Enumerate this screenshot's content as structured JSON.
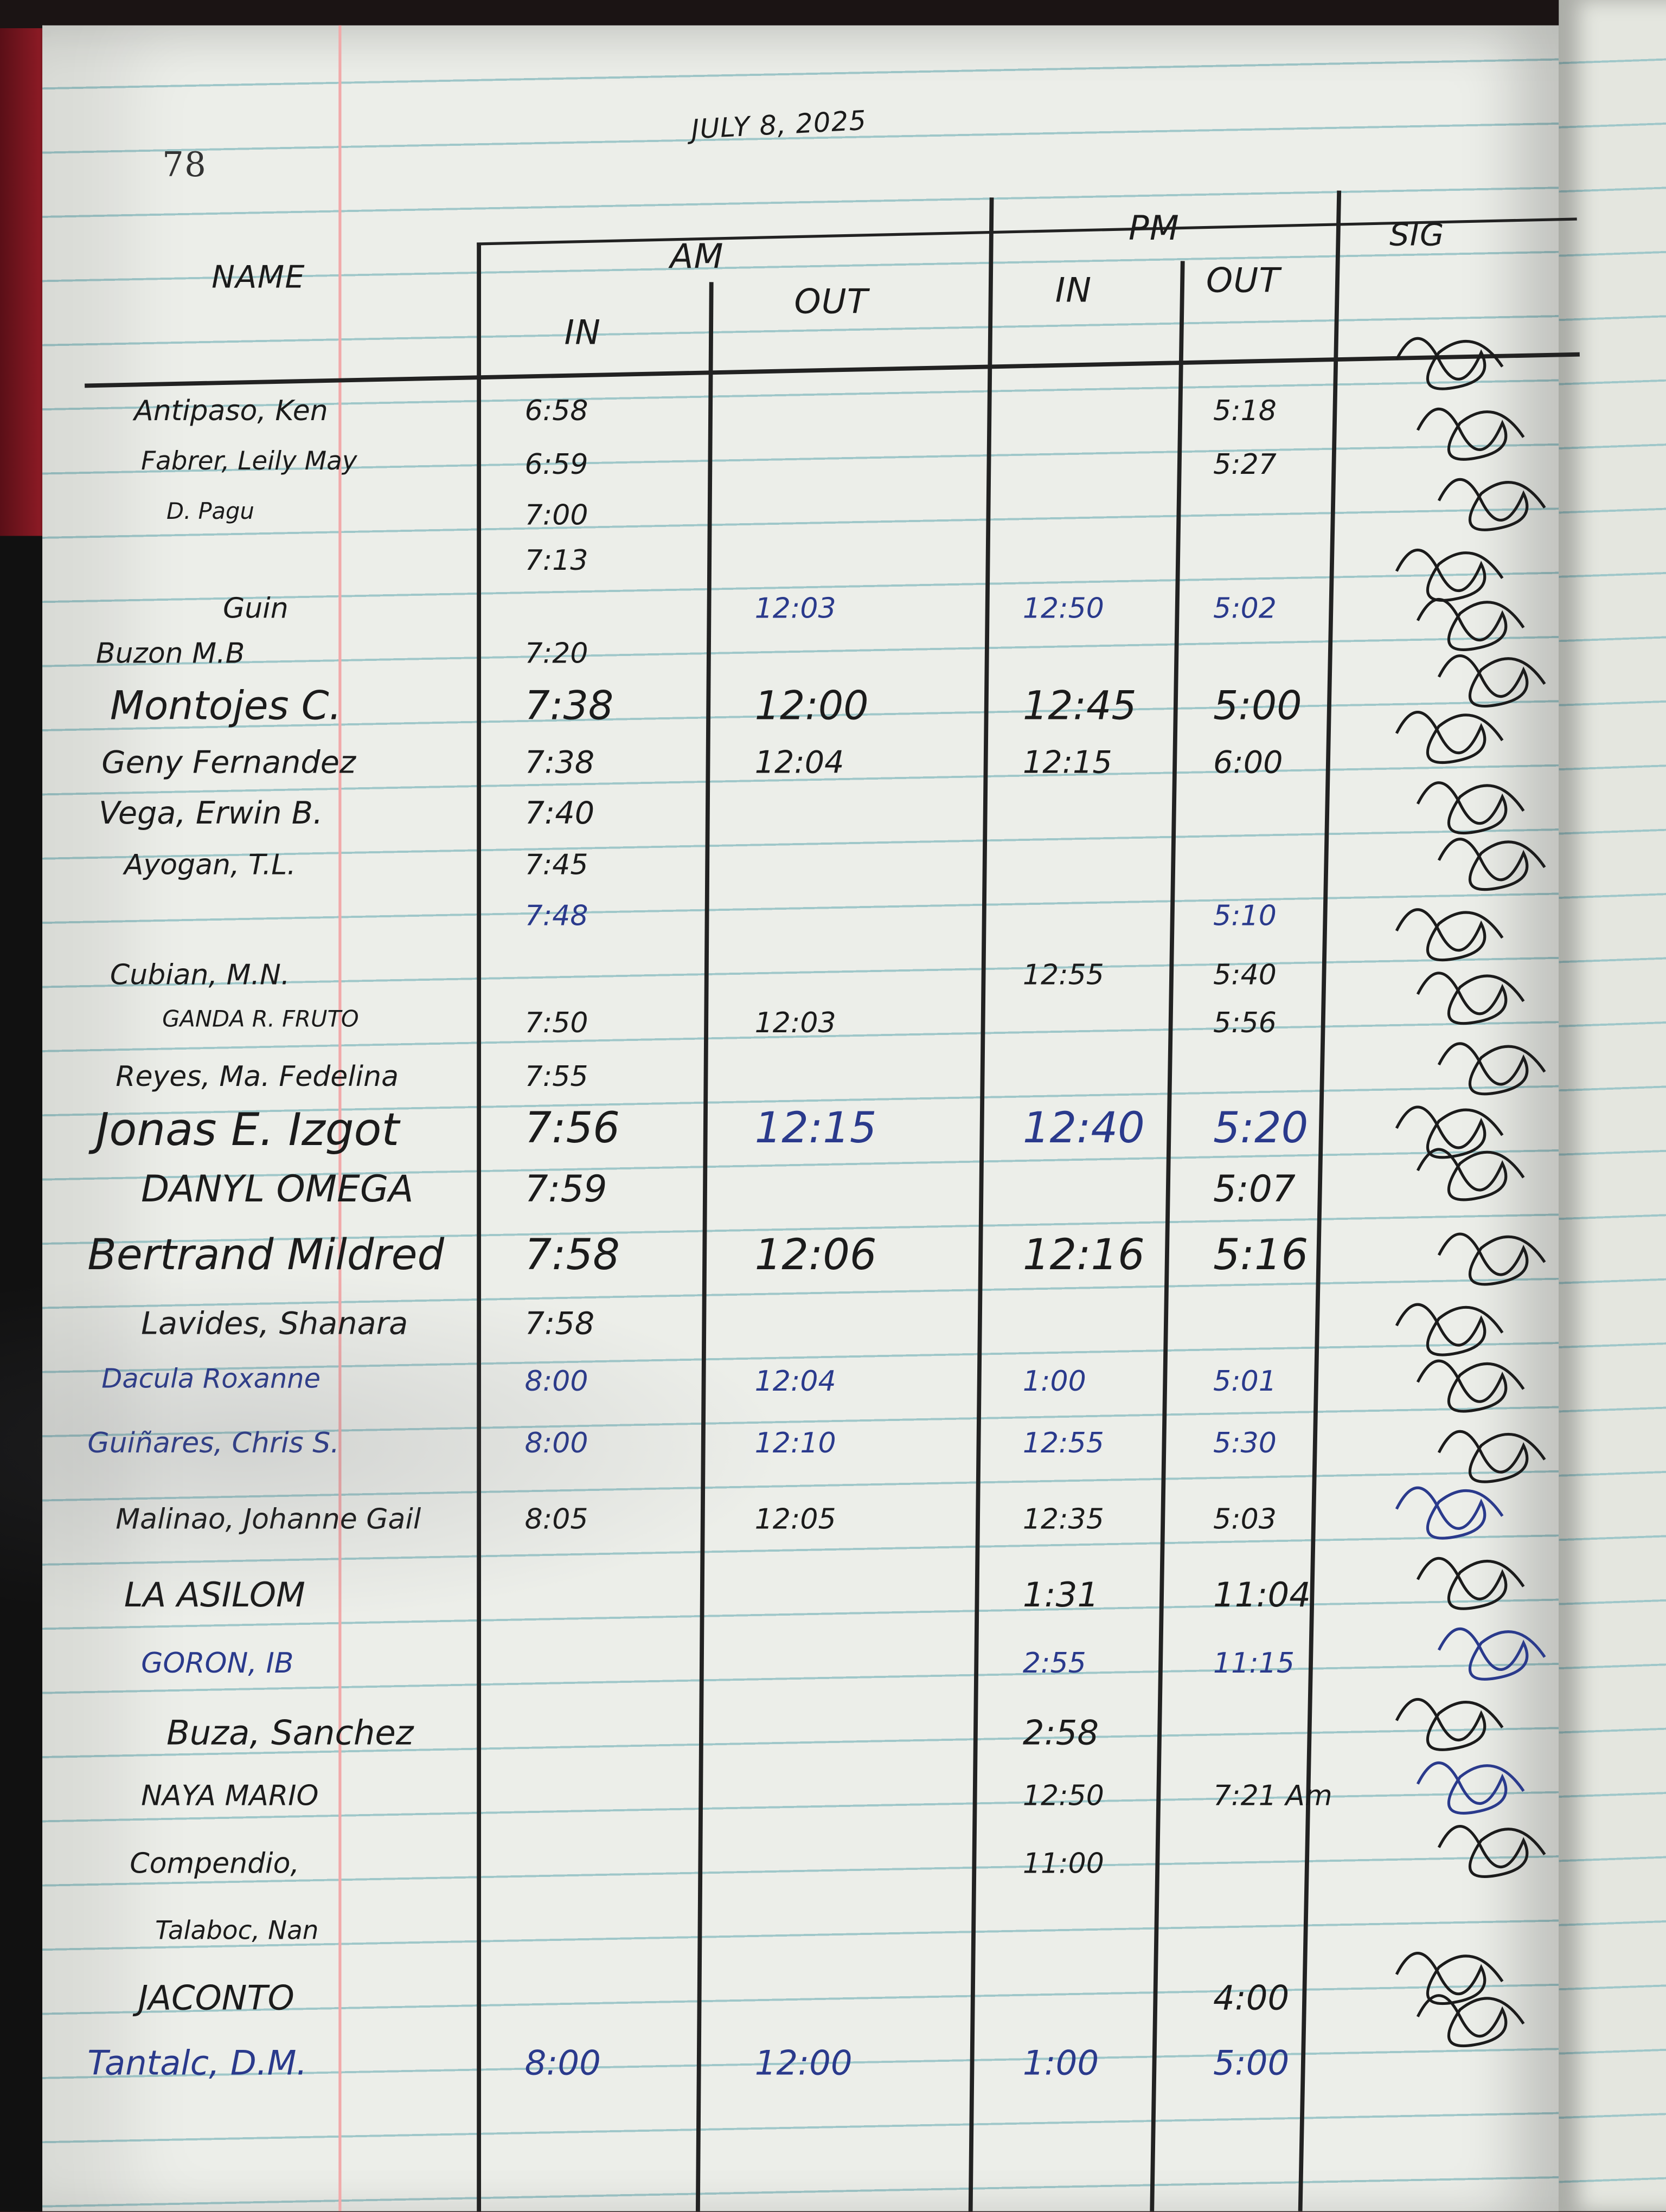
{
  "page_number": "78",
  "date": "JULY 8, 2025",
  "headers": {
    "name": "NAME",
    "am": "AM",
    "pm": "PM",
    "in": "IN",
    "out": "OUT",
    "sig": "SIG"
  },
  "ink_colors": {
    "black": "#1b1b1b",
    "blue": "#2a3a8c"
  },
  "rows": [
    {
      "name": "Antipaso, Ken",
      "am_in": "6:58",
      "am_out": "",
      "pm_in": "",
      "pm_out": "5:18",
      "ink": "black"
    },
    {
      "name": "Fabrer, Leily May",
      "am_in": "6:59",
      "am_out": "",
      "pm_in": "",
      "pm_out": "5:27",
      "ink": "black"
    },
    {
      "name": "D. Pagu",
      "am_in": "7:00",
      "am_out": "",
      "pm_in": "",
      "pm_out": "",
      "ink": "black"
    },
    {
      "name": "",
      "am_in": "7:13",
      "am_out": "",
      "pm_in": "",
      "pm_out": "",
      "ink": "black"
    },
    {
      "name": "Guin",
      "am_in": "",
      "am_out": "12:03",
      "pm_in": "12:50",
      "pm_out": "5:02",
      "ink": "mixed"
    },
    {
      "name": "Buzon M.B",
      "am_in": "7:20",
      "am_out": "",
      "pm_in": "",
      "pm_out": "",
      "ink": "black"
    },
    {
      "name": "Montojes C.",
      "am_in": "7:38",
      "am_out": "12:00",
      "pm_in": "12:45",
      "pm_out": "5:00",
      "ink": "black"
    },
    {
      "name": "Geny Fernandez",
      "am_in": "7:38",
      "am_out": "12:04",
      "pm_in": "12:15",
      "pm_out": "6:00",
      "ink": "black"
    },
    {
      "name": "Vega, Erwin B.",
      "am_in": "7:40",
      "am_out": "",
      "pm_in": "",
      "pm_out": "",
      "ink": "black"
    },
    {
      "name": "Ayogan, T.L.",
      "am_in": "7:45",
      "am_out": "",
      "pm_in": "",
      "pm_out": "",
      "ink": "black"
    },
    {
      "name": "",
      "am_in": "7:48",
      "am_out": "",
      "pm_in": "",
      "pm_out": "5:10",
      "ink": "blue"
    },
    {
      "name": "Cubian, M.N.",
      "am_in": "",
      "am_out": "",
      "pm_in": "12:55",
      "pm_out": "5:40",
      "ink": "black"
    },
    {
      "name": "GANDA R. FRUTO",
      "am_in": "7:50",
      "am_out": "12:03",
      "pm_in": "",
      "pm_out": "5:56",
      "ink": "black"
    },
    {
      "name": "Reyes, Ma. Fedelina",
      "am_in": "7:55",
      "am_out": "",
      "pm_in": "",
      "pm_out": "",
      "ink": "black"
    },
    {
      "name": "Jonas E. Izgot",
      "am_in": "7:56",
      "am_out": "12:15",
      "pm_in": "12:40",
      "pm_out": "5:20",
      "ink": "mixed"
    },
    {
      "name": "DANYL OMEGA",
      "am_in": "7:59",
      "am_out": "",
      "pm_in": "",
      "pm_out": "5:07",
      "ink": "black"
    },
    {
      "name": "Bertrand Mildred",
      "am_in": "7:58",
      "am_out": "12:06",
      "pm_in": "12:16",
      "pm_out": "5:16",
      "ink": "black"
    },
    {
      "name": "Lavides, Shanara",
      "am_in": "7:58",
      "am_out": "",
      "pm_in": "",
      "pm_out": "",
      "ink": "black"
    },
    {
      "name": "Dacula Roxanne",
      "am_in": "8:00",
      "am_out": "12:04",
      "pm_in": "1:00",
      "pm_out": "5:01",
      "ink": "blue"
    },
    {
      "name": "Guiñares, Chris S.",
      "am_in": "8:00",
      "am_out": "12:10",
      "pm_in": "12:55",
      "pm_out": "5:30",
      "ink": "blue"
    },
    {
      "name": "Malinao, Johanne Gail",
      "am_in": "8:05",
      "am_out": "12:05",
      "pm_in": "12:35",
      "pm_out": "5:03",
      "ink": "black"
    },
    {
      "name": "LA ASILOM",
      "am_in": "",
      "am_out": "",
      "pm_in": "1:31",
      "pm_out": "11:04",
      "ink": "black"
    },
    {
      "name": "GORON, IB",
      "am_in": "",
      "am_out": "",
      "pm_in": "2:55",
      "pm_out": "11:15",
      "ink": "blue"
    },
    {
      "name": "Buza, Sanchez",
      "am_in": "",
      "am_out": "",
      "pm_in": "2:58",
      "pm_out": "",
      "ink": "black"
    },
    {
      "name": "NAYA MARIO",
      "am_in": "",
      "am_out": "",
      "pm_in": "12:50",
      "pm_out": "7:21 Am",
      "ink": "black"
    },
    {
      "name": "Compendio,",
      "am_in": "",
      "am_out": "",
      "pm_in": "11:00",
      "pm_out": "",
      "ink": "black"
    },
    {
      "name": "Talaboc, Nan",
      "am_in": "",
      "am_out": "",
      "pm_in": "",
      "pm_out": "",
      "ink": "black"
    },
    {
      "name": "JACONTO",
      "am_in": "",
      "am_out": "",
      "pm_in": "",
      "pm_out": "4:00",
      "ink": "black"
    },
    {
      "name": "Tantalc, D.M.",
      "am_in": "8:00",
      "am_out": "12:00",
      "pm_in": "1:00",
      "pm_out": "5:00",
      "ink": "blue"
    }
  ]
}
